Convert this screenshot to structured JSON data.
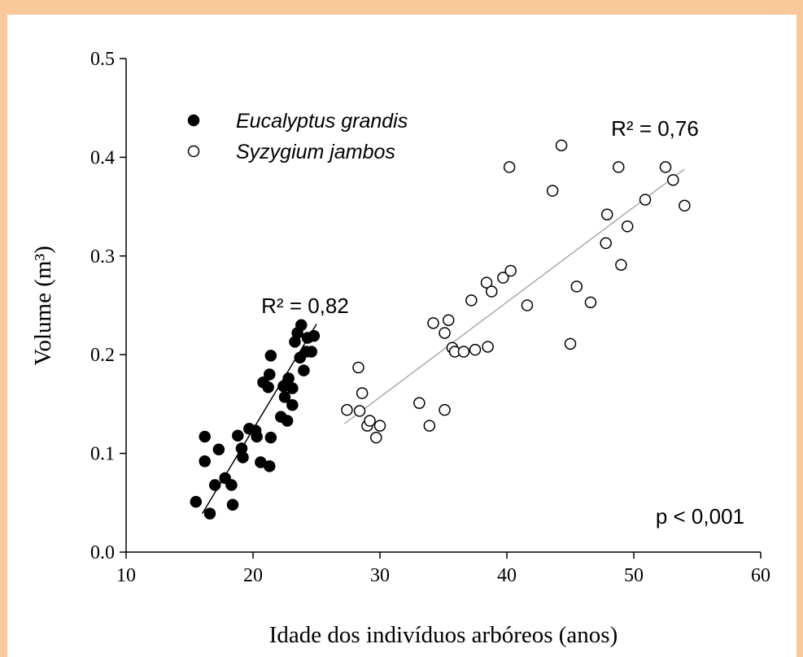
{
  "chart_data": {
    "type": "scatter",
    "xlabel": "Idade dos indivíduos arbóreos (anos)",
    "ylabel": "Volume (m³)",
    "xlim": [
      10,
      60
    ],
    "xticks": [
      10,
      20,
      30,
      40,
      50,
      60
    ],
    "ylim": [
      0,
      0.5
    ],
    "yticks": [
      {
        "value": 0,
        "label": "0.0"
      },
      0.1,
      0.2,
      0.3,
      0.4,
      0.5
    ],
    "legend": "upper left",
    "annotations": [
      "R² = 0,82",
      "R² = 0,76",
      "p < 0,001"
    ],
    "series": [
      {
        "name": "Eucalyptus grandis",
        "color": "#000000",
        "marker": "filled",
        "line_color": "#000000",
        "x": [
          15.5,
          16.2,
          16.2,
          16.6,
          17.0,
          17.3,
          17.8,
          18.3,
          18.4,
          18.8,
          19.1,
          19.2,
          19.7,
          20.2,
          20.3,
          20.6,
          20.8,
          21.2,
          21.3,
          21.3,
          21.4,
          21.4,
          22.2,
          22.5,
          22.7,
          22.4,
          22.8,
          23.1,
          23.3,
          23.5,
          23.8,
          23.7,
          24.0,
          24.2,
          24.6,
          24.8,
          24.3,
          23.1
        ],
        "values": [
          0.051,
          0.117,
          0.092,
          0.039,
          0.068,
          0.104,
          0.075,
          0.068,
          0.048,
          0.118,
          0.105,
          0.096,
          0.125,
          0.123,
          0.117,
          0.091,
          0.172,
          0.167,
          0.087,
          0.18,
          0.116,
          0.199,
          0.137,
          0.157,
          0.133,
          0.168,
          0.176,
          0.166,
          0.213,
          0.222,
          0.23,
          0.197,
          0.184,
          0.203,
          0.203,
          0.219,
          0.217,
          0.149
        ],
        "trend_x": [
          16.0,
          25.0
        ],
        "trend_y": [
          0.039,
          0.231
        ]
      },
      {
        "name": "Syzygium jambos",
        "color": "#000000",
        "marker": "open",
        "line_color": "#aaaaaa",
        "x": [
          27.4,
          28.3,
          28.4,
          28.6,
          29.0,
          29.2,
          29.7,
          30.0,
          33.1,
          33.9,
          34.2,
          35.1,
          35.1,
          35.4,
          35.7,
          35.9,
          36.6,
          37.2,
          37.5,
          38.4,
          38.5,
          38.8,
          39.7,
          40.3,
          40.2,
          41.6,
          43.6,
          44.3,
          45.0,
          45.5,
          46.6,
          47.8,
          47.9,
          48.8,
          49.0,
          49.5,
          50.9,
          52.5,
          53.1,
          54.0
        ],
        "values": [
          0.144,
          0.187,
          0.143,
          0.161,
          0.128,
          0.133,
          0.116,
          0.128,
          0.151,
          0.128,
          0.232,
          0.144,
          0.222,
          0.235,
          0.207,
          0.203,
          0.203,
          0.255,
          0.205,
          0.273,
          0.208,
          0.264,
          0.278,
          0.285,
          0.39,
          0.25,
          0.366,
          0.412,
          0.211,
          0.269,
          0.253,
          0.313,
          0.342,
          0.39,
          0.291,
          0.33,
          0.357,
          0.39,
          0.377,
          0.351
        ],
        "trend_x": [
          27.2,
          54.0
        ],
        "trend_y": [
          0.13,
          0.388
        ]
      }
    ]
  }
}
